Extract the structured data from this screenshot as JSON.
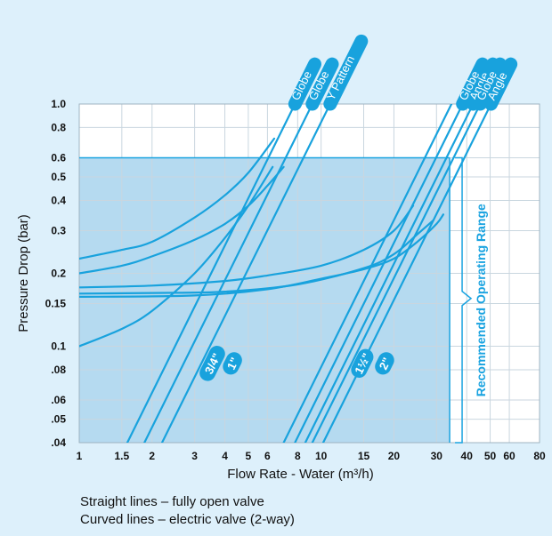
{
  "chart_data": {
    "type": "line",
    "xscale": "log",
    "yscale": "log",
    "xlim": [
      1,
      80
    ],
    "ylim": [
      0.04,
      1.0
    ],
    "xlabel": "Flow Rate - Water (m³/h)",
    "ylabel": "Pressure Drop (bar)",
    "x_ticks": [
      1,
      1.5,
      2,
      3,
      4,
      5,
      6,
      8,
      10,
      15,
      20,
      30,
      40,
      50,
      60,
      80
    ],
    "x_tick_labels": [
      "1",
      "1.5",
      "2",
      "3",
      "4",
      "5",
      "6",
      "8",
      "10",
      "15",
      "20",
      "30",
      "40",
      "50",
      "60",
      "80"
    ],
    "y_ticks": [
      0.04,
      0.05,
      0.06,
      0.08,
      0.1,
      0.15,
      0.2,
      0.3,
      0.4,
      0.5,
      0.6,
      0.8,
      1.0
    ],
    "y_tick_labels": [
      ".04",
      ".05",
      ".06",
      ".08",
      "0.1",
      "0.15",
      "0.2",
      "0.3",
      "0.4",
      "0.5",
      "0.6",
      "0.8",
      "1.0"
    ],
    "grid": true,
    "recommended_operating_range": {
      "label": "Recommended Operating Range",
      "x": [
        1,
        34
      ],
      "y": [
        0.04,
        0.6
      ]
    },
    "size_labels": [
      {
        "text": "3/4\"",
        "x": 3.55,
        "y": 0.085
      },
      {
        "text": "1\"",
        "x": 4.3,
        "y": 0.085
      },
      {
        "text": "1½\"",
        "x": 14.8,
        "y": 0.085
      },
      {
        "text": "2\"",
        "x": 18.3,
        "y": 0.085
      }
    ],
    "series": [
      {
        "name": "Globe",
        "kind": "straight",
        "points": [
          [
            1.58,
            0.04
          ],
          [
            7.8,
            1.0
          ]
        ]
      },
      {
        "name": "Globe",
        "kind": "straight",
        "points": [
          [
            1.86,
            0.04
          ],
          [
            9.2,
            1.0
          ]
        ]
      },
      {
        "name": "Y Pattern",
        "kind": "straight",
        "points": [
          [
            2.2,
            0.04
          ],
          [
            10.9,
            1.0
          ]
        ]
      },
      {
        "name": "",
        "kind": "straight",
        "points": [
          [
            7.0,
            0.04
          ],
          [
            34.6,
            1.0
          ]
        ]
      },
      {
        "name": "Globe",
        "kind": "straight",
        "points": [
          [
            7.8,
            0.04
          ],
          [
            38.5,
            1.0
          ]
        ]
      },
      {
        "name": "Angle",
        "kind": "straight",
        "points": [
          [
            8.6,
            0.04
          ],
          [
            42.5,
            1.0
          ]
        ]
      },
      {
        "name": "Globe",
        "kind": "straight",
        "points": [
          [
            9.2,
            0.04
          ],
          [
            45.5,
            1.0
          ]
        ]
      },
      {
        "name": "Angle",
        "kind": "straight",
        "points": [
          [
            10.2,
            0.04
          ],
          [
            50.4,
            1.0
          ]
        ]
      },
      {
        "name": "",
        "kind": "curved",
        "points": [
          [
            1,
            0.1
          ],
          [
            1.5,
            0.118
          ],
          [
            2,
            0.14
          ],
          [
            3,
            0.2
          ],
          [
            4,
            0.28
          ],
          [
            5,
            0.38
          ],
          [
            6.3,
            0.55
          ]
        ]
      },
      {
        "name": "",
        "kind": "curved",
        "points": [
          [
            1,
            0.2
          ],
          [
            1.5,
            0.215
          ],
          [
            2,
            0.235
          ],
          [
            3,
            0.275
          ],
          [
            4,
            0.32
          ],
          [
            5,
            0.38
          ],
          [
            6,
            0.46
          ],
          [
            7,
            0.55
          ]
        ]
      },
      {
        "name": "",
        "kind": "curved",
        "points": [
          [
            1,
            0.23
          ],
          [
            1.5,
            0.25
          ],
          [
            2,
            0.27
          ],
          [
            3,
            0.34
          ],
          [
            4,
            0.42
          ],
          [
            5,
            0.52
          ],
          [
            6.4,
            0.72
          ]
        ]
      },
      {
        "name": "",
        "kind": "curved",
        "points": [
          [
            1,
            0.175
          ],
          [
            2,
            0.178
          ],
          [
            4,
            0.186
          ],
          [
            6,
            0.196
          ],
          [
            10,
            0.215
          ],
          [
            15,
            0.25
          ],
          [
            20,
            0.3
          ],
          [
            24,
            0.38
          ]
        ]
      },
      {
        "name": "",
        "kind": "curved",
        "points": [
          [
            1,
            0.165
          ],
          [
            2,
            0.166
          ],
          [
            4,
            0.168
          ],
          [
            8,
            0.18
          ],
          [
            15,
            0.21
          ],
          [
            20,
            0.24
          ],
          [
            25,
            0.29
          ],
          [
            29,
            0.33
          ]
        ]
      },
      {
        "name": "",
        "kind": "curved",
        "points": [
          [
            1,
            0.16
          ],
          [
            3,
            0.162
          ],
          [
            6,
            0.172
          ],
          [
            10,
            0.19
          ],
          [
            15,
            0.208
          ],
          [
            20,
            0.23
          ],
          [
            25,
            0.27
          ],
          [
            30,
            0.32
          ],
          [
            32,
            0.35
          ]
        ]
      }
    ]
  },
  "notes": {
    "line1": "Straight lines – fully open valve",
    "line2": "Curved lines – electric valve (2-way)"
  }
}
